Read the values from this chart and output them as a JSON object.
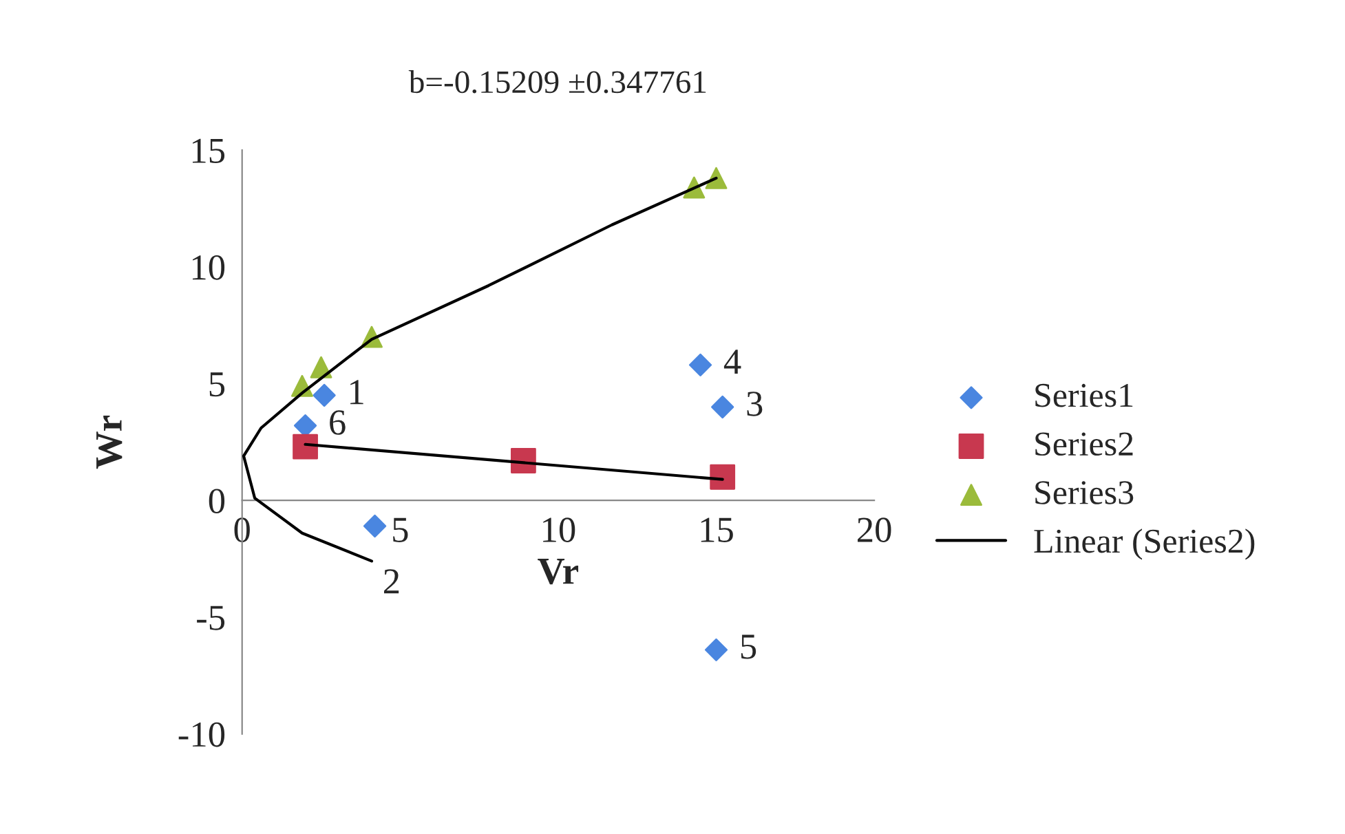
{
  "chart_data": {
    "type": "scatter",
    "title": "b=-0.15209 ±0.347761",
    "xlabel": "Vr",
    "ylabel": "Wr",
    "xlim": [
      0,
      20
    ],
    "ylim": [
      -10,
      15
    ],
    "xticks": [
      0,
      5,
      10,
      15,
      20
    ],
    "yticks": [
      -10,
      -5,
      0,
      5,
      10,
      15
    ],
    "grid": false,
    "legend": "right",
    "series": [
      {
        "name": "Series1",
        "color": "#4a86e0",
        "marker": "diamond",
        "x": [
          2.6,
          4.2,
          15.2,
          14.5,
          15.0,
          2.0
        ],
        "values": [
          4.5,
          -1.1,
          4.0,
          5.8,
          -6.4,
          3.2
        ]
      },
      {
        "name": "Series2",
        "color": "#c8384f",
        "marker": "square",
        "x": [
          2.0,
          8.9,
          15.2
        ],
        "values": [
          2.3,
          1.7,
          1.0
        ]
      },
      {
        "name": "Series3",
        "color": "#9bbb3b",
        "marker": "triangle",
        "x": [
          1.9,
          2.5,
          4.1,
          14.3,
          15.0
        ],
        "values": [
          4.9,
          5.7,
          7.0,
          13.4,
          13.8
        ]
      },
      {
        "name": "Linear (Series2)",
        "type": "line",
        "color": "#000000",
        "marker": "none",
        "line_style": "solid",
        "x": [
          2.0,
          15.2
        ],
        "values": [
          2.4,
          0.9
        ]
      },
      {
        "type": "line",
        "color": "#000000",
        "marker": "none",
        "line_style": "solid",
        "x": [
          15.0,
          11.7,
          7.8,
          4.1,
          1.9,
          0.6,
          0.05,
          0.4,
          1.9,
          4.1
        ],
        "values": [
          13.8,
          11.8,
          9.2,
          6.9,
          4.6,
          3.1,
          1.9,
          0.1,
          -1.4,
          -2.6
        ]
      }
    ],
    "annotations": [
      {
        "text": "1",
        "x": 2.6,
        "y": 4.5
      },
      {
        "text": "2",
        "x": 4.2,
        "y": -1.1
      },
      {
        "text": "3",
        "x": 15.2,
        "y": 4.0
      },
      {
        "text": "4",
        "x": 14.5,
        "y": 5.8
      },
      {
        "text": "5",
        "x": 15.0,
        "y": -6.4
      },
      {
        "text": "6",
        "x": 2.0,
        "y": 3.2
      }
    ]
  }
}
